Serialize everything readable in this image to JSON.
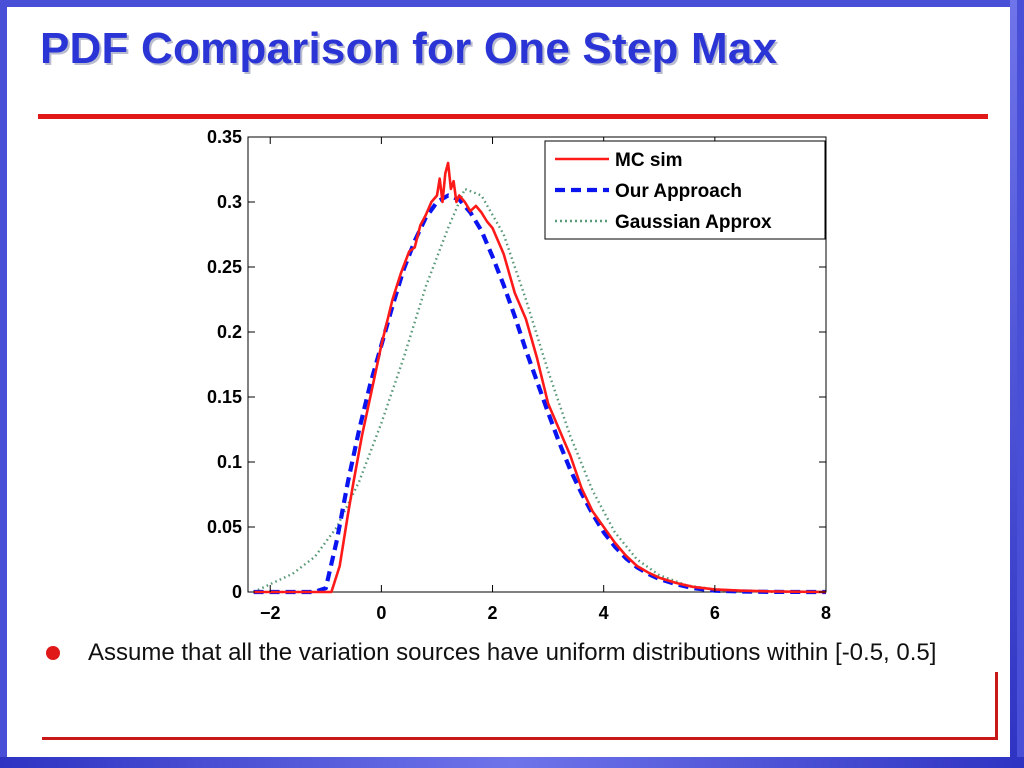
{
  "slide": {
    "title": "PDF Comparison for One Step Max",
    "bullet": "Assume that all the variation sources have uniform distributions within [-0.5, 0.5]"
  },
  "colors": {
    "title": "#2b35d6",
    "accent_rule": "#e01818",
    "frame": "#4a4fd8",
    "mc_sim": "#ff1a1a",
    "our_approach": "#0a14f0",
    "gaussian": "#5a9a78"
  },
  "chart_data": {
    "type": "line",
    "title": "",
    "xlabel": "",
    "ylabel": "",
    "xlim": [
      -2.4,
      8
    ],
    "ylim": [
      0,
      0.35
    ],
    "xticks": [
      -2,
      0,
      2,
      4,
      6,
      8
    ],
    "xtick_labels": [
      "−2",
      "0",
      "2",
      "4",
      "6",
      "8"
    ],
    "yticks": [
      0,
      0.05,
      0.1,
      0.15,
      0.2,
      0.25,
      0.3,
      0.35
    ],
    "ytick_labels": [
      "0",
      "0.05",
      "0.1",
      "0.15",
      "0.2",
      "0.25",
      "0.3",
      "0.35"
    ],
    "grid": false,
    "legend_position": "top-right",
    "series": [
      {
        "name": "MC sim",
        "style": "solid",
        "color": "#ff1a1a",
        "x": [
          -2.3,
          -0.9,
          -0.75,
          -0.6,
          -0.5,
          -0.35,
          -0.2,
          0,
          0.2,
          0.35,
          0.5,
          0.6,
          0.7,
          0.8,
          0.9,
          1.0,
          1.05,
          1.1,
          1.15,
          1.2,
          1.25,
          1.3,
          1.35,
          1.4,
          1.5,
          1.6,
          1.7,
          1.8,
          1.9,
          2.0,
          2.1,
          2.2,
          2.4,
          2.6,
          2.8,
          3.0,
          3.2,
          3.4,
          3.6,
          3.8,
          4.0,
          4.2,
          4.4,
          4.6,
          4.8,
          5.0,
          5.3,
          5.6,
          6.0,
          6.5,
          7.0,
          8.0
        ],
        "y": [
          0,
          0,
          0.02,
          0.06,
          0.085,
          0.12,
          0.15,
          0.19,
          0.225,
          0.245,
          0.262,
          0.265,
          0.282,
          0.29,
          0.3,
          0.305,
          0.318,
          0.3,
          0.322,
          0.33,
          0.31,
          0.316,
          0.3,
          0.305,
          0.3,
          0.293,
          0.297,
          0.292,
          0.285,
          0.28,
          0.27,
          0.26,
          0.23,
          0.21,
          0.18,
          0.145,
          0.125,
          0.105,
          0.08,
          0.062,
          0.05,
          0.038,
          0.028,
          0.02,
          0.015,
          0.011,
          0.007,
          0.004,
          0.002,
          0.001,
          0.0005,
          0
        ]
      },
      {
        "name": "Our Approach",
        "style": "dashed",
        "color": "#0a14f0",
        "x": [
          -2.3,
          -1.2,
          -1.0,
          -0.8,
          -0.6,
          -0.4,
          -0.2,
          0,
          0.2,
          0.4,
          0.6,
          0.8,
          1.0,
          1.2,
          1.4,
          1.6,
          1.8,
          2.0,
          2.2,
          2.4,
          2.6,
          2.8,
          3.0,
          3.2,
          3.4,
          3.6,
          3.8,
          4.0,
          4.2,
          4.4,
          4.6,
          4.8,
          5.0,
          5.3,
          5.6,
          6.0,
          6.5,
          7.0,
          8.0
        ],
        "y": [
          0,
          0,
          0.003,
          0.04,
          0.085,
          0.125,
          0.16,
          0.19,
          0.22,
          0.248,
          0.27,
          0.288,
          0.3,
          0.305,
          0.302,
          0.292,
          0.278,
          0.258,
          0.236,
          0.212,
          0.186,
          0.162,
          0.138,
          0.115,
          0.094,
          0.076,
          0.06,
          0.046,
          0.035,
          0.026,
          0.019,
          0.014,
          0.01,
          0.006,
          0.003,
          0.001,
          0.0004,
          0.0001,
          0
        ]
      },
      {
        "name": "Gaussian Approx",
        "style": "dotted",
        "color": "#5a9a78",
        "x": [
          -2.3,
          -2.0,
          -1.6,
          -1.2,
          -0.8,
          -0.4,
          0,
          0.4,
          0.8,
          1.2,
          1.5,
          1.8,
          2.2,
          2.6,
          3.0,
          3.4,
          3.8,
          4.2,
          4.6,
          5.0,
          5.5,
          6.0,
          6.5,
          7.0,
          8.0
        ],
        "y": [
          0.0,
          0.006,
          0.014,
          0.027,
          0.05,
          0.085,
          0.13,
          0.18,
          0.235,
          0.28,
          0.31,
          0.305,
          0.275,
          0.225,
          0.17,
          0.12,
          0.078,
          0.046,
          0.025,
          0.013,
          0.005,
          0.002,
          0.0006,
          0.0001,
          0
        ]
      }
    ]
  }
}
